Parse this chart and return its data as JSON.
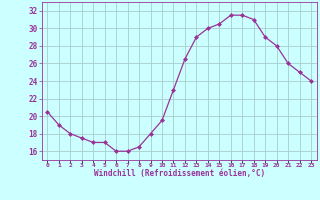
{
  "x": [
    0,
    1,
    2,
    3,
    4,
    5,
    6,
    7,
    8,
    9,
    10,
    11,
    12,
    13,
    14,
    15,
    16,
    17,
    18,
    19,
    20,
    21,
    22,
    23
  ],
  "y": [
    20.5,
    19.0,
    18.0,
    17.5,
    17.0,
    17.0,
    16.0,
    16.0,
    16.5,
    18.0,
    19.5,
    23.0,
    26.5,
    29.0,
    30.0,
    30.5,
    31.5,
    31.5,
    31.0,
    29.0,
    28.0,
    26.0,
    25.0,
    24.0
  ],
  "line_color": "#993399",
  "marker": "D",
  "marker_size": 2,
  "bg_color": "#ccffff",
  "grid_color": "#aacccc",
  "xlabel": "Windchill (Refroidissement éolien,°C)",
  "xlabel_color": "#993399",
  "ylabel_ticks": [
    16,
    18,
    20,
    22,
    24,
    26,
    28,
    30,
    32
  ],
  "xtick_labels": [
    "0",
    "1",
    "2",
    "3",
    "4",
    "5",
    "6",
    "7",
    "8",
    "9",
    "10",
    "11",
    "12",
    "13",
    "14",
    "15",
    "16",
    "17",
    "18",
    "19",
    "20",
    "21",
    "22",
    "23"
  ],
  "ylim": [
    15.0,
    33.0
  ],
  "xlim": [
    -0.5,
    23.5
  ],
  "spine_color": "#993399"
}
